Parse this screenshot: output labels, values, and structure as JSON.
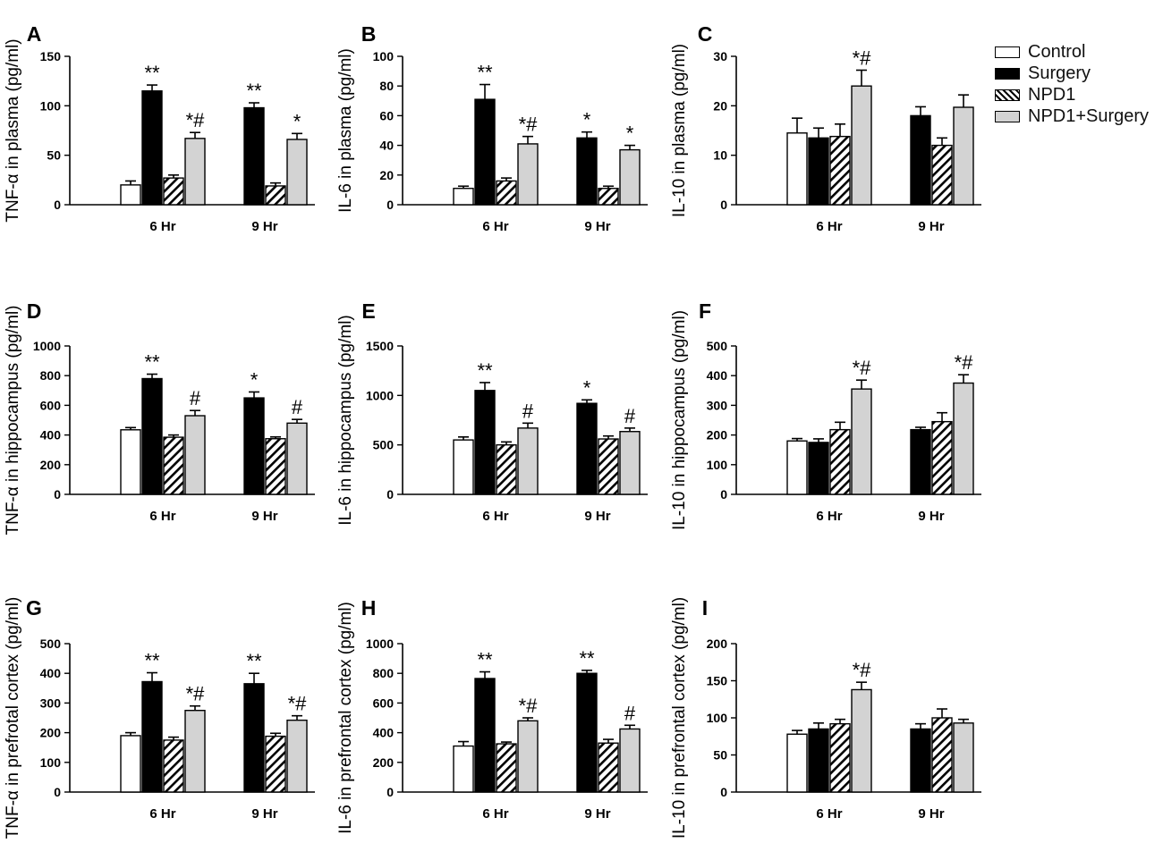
{
  "legend": [
    {
      "label": "Control",
      "fill": "#ffffff"
    },
    {
      "label": "Surgery",
      "fill": "#000000"
    },
    {
      "label": "NPD1",
      "fill": "hatch"
    },
    {
      "label": "NPD1+Surgery",
      "fill": "#d3d3d3"
    }
  ],
  "chart_data": [
    {
      "panel": "A",
      "type": "bar",
      "ylabel": "TNF-α in plasma (pg/ml)",
      "ylim": [
        0,
        150
      ],
      "ticks": [
        0,
        50,
        100,
        150
      ],
      "categories": [
        "6 Hr",
        "9 Hr"
      ],
      "series": [
        {
          "name": "Control",
          "values": [
            20,
            null
          ],
          "errors": [
            4,
            null
          ]
        },
        {
          "name": "Surgery",
          "values": [
            115,
            98
          ],
          "errors": [
            6,
            5
          ]
        },
        {
          "name": "NPD1",
          "values": [
            27,
            19
          ],
          "errors": [
            3,
            3
          ]
        },
        {
          "name": "NPD1+Surgery",
          "values": [
            67,
            66
          ],
          "errors": [
            6,
            6
          ]
        }
      ],
      "annotations": [
        [
          "",
          "**",
          "",
          "*#"
        ],
        [
          "",
          "**",
          "",
          "*"
        ]
      ]
    },
    {
      "panel": "B",
      "type": "bar",
      "ylabel": "IL-6 in plasma (pg/ml)",
      "ylim": [
        0,
        100
      ],
      "ticks": [
        0,
        20,
        40,
        60,
        80,
        100
      ],
      "categories": [
        "6 Hr",
        "9 Hr"
      ],
      "series": [
        {
          "name": "Control",
          "values": [
            11,
            null
          ],
          "errors": [
            1.5,
            null
          ]
        },
        {
          "name": "Surgery",
          "values": [
            71,
            45
          ],
          "errors": [
            10,
            4
          ]
        },
        {
          "name": "NPD1",
          "values": [
            16,
            11
          ],
          "errors": [
            2,
            1.5
          ]
        },
        {
          "name": "NPD1+Surgery",
          "values": [
            41,
            37
          ],
          "errors": [
            5,
            3
          ]
        }
      ],
      "annotations": [
        [
          "",
          "**",
          "",
          "*#"
        ],
        [
          "",
          "*",
          "",
          "*"
        ]
      ]
    },
    {
      "panel": "C",
      "type": "bar",
      "ylabel": "IL-10 in plasma (pg/ml)",
      "ylim": [
        0,
        30
      ],
      "ticks": [
        0,
        10,
        20,
        30
      ],
      "categories": [
        "6 Hr",
        "9 Hr"
      ],
      "series": [
        {
          "name": "Control",
          "values": [
            14.5,
            null
          ],
          "errors": [
            3,
            null
          ]
        },
        {
          "name": "Surgery",
          "values": [
            13.5,
            18
          ],
          "errors": [
            2,
            1.8
          ]
        },
        {
          "name": "NPD1",
          "values": [
            13.8,
            12
          ],
          "errors": [
            2.5,
            1.5
          ]
        },
        {
          "name": "NPD1+Surgery",
          "values": [
            24,
            19.7
          ],
          "errors": [
            3.2,
            2.5
          ]
        }
      ],
      "annotations": [
        [
          "",
          "",
          "",
          "*#"
        ],
        [
          "",
          "",
          "",
          ""
        ]
      ]
    },
    {
      "panel": "D",
      "type": "bar",
      "ylabel": "TNF-α in hippocampus (pg/ml)",
      "ylim": [
        0,
        1000
      ],
      "ticks": [
        0,
        200,
        400,
        600,
        800,
        1000
      ],
      "categories": [
        "6 Hr",
        "9 Hr"
      ],
      "series": [
        {
          "name": "Control",
          "values": [
            435,
            null
          ],
          "errors": [
            15,
            null
          ]
        },
        {
          "name": "Surgery",
          "values": [
            780,
            650
          ],
          "errors": [
            30,
            40
          ]
        },
        {
          "name": "NPD1",
          "values": [
            385,
            375
          ],
          "errors": [
            15,
            12
          ]
        },
        {
          "name": "NPD1+Surgery",
          "values": [
            530,
            480
          ],
          "errors": [
            35,
            25
          ]
        }
      ],
      "annotations": [
        [
          "",
          "**",
          "",
          "#"
        ],
        [
          "",
          "*",
          "",
          "#"
        ]
      ]
    },
    {
      "panel": "E",
      "type": "bar",
      "ylabel": "IL-6 in hippocampus (pg/ml)",
      "ylim": [
        0,
        1500
      ],
      "ticks": [
        0,
        500,
        1000,
        1500
      ],
      "categories": [
        "6 Hr",
        "9 Hr"
      ],
      "series": [
        {
          "name": "Control",
          "values": [
            550,
            null
          ],
          "errors": [
            30,
            null
          ]
        },
        {
          "name": "Surgery",
          "values": [
            1050,
            920
          ],
          "errors": [
            80,
            35
          ]
        },
        {
          "name": "NPD1",
          "values": [
            500,
            560
          ],
          "errors": [
            30,
            30
          ]
        },
        {
          "name": "NPD1+Surgery",
          "values": [
            670,
            635
          ],
          "errors": [
            50,
            35
          ]
        }
      ],
      "annotations": [
        [
          "",
          "**",
          "",
          "#"
        ],
        [
          "",
          "*",
          "",
          "#"
        ]
      ]
    },
    {
      "panel": "F",
      "type": "bar",
      "ylabel": "IL-10 in hippocampus (pg/ml)",
      "ylim": [
        0,
        500
      ],
      "ticks": [
        0,
        100,
        200,
        300,
        400,
        500
      ],
      "categories": [
        "6 Hr",
        "9 Hr"
      ],
      "series": [
        {
          "name": "Control",
          "values": [
            180,
            null
          ],
          "errors": [
            8,
            null
          ]
        },
        {
          "name": "Surgery",
          "values": [
            175,
            218
          ],
          "errors": [
            12,
            8
          ]
        },
        {
          "name": "NPD1",
          "values": [
            218,
            245
          ],
          "errors": [
            25,
            30
          ]
        },
        {
          "name": "NPD1+Surgery",
          "values": [
            355,
            375
          ],
          "errors": [
            30,
            28
          ]
        }
      ],
      "annotations": [
        [
          "",
          "",
          "",
          "*#"
        ],
        [
          "",
          "",
          "",
          "*#"
        ]
      ]
    },
    {
      "panel": "G",
      "type": "bar",
      "ylabel": "TNF-α in prefrotal cortex (pg/ml)",
      "ylim": [
        0,
        500
      ],
      "ticks": [
        0,
        100,
        200,
        300,
        400,
        500
      ],
      "categories": [
        "6 Hr",
        "9 Hr"
      ],
      "series": [
        {
          "name": "Control",
          "values": [
            190,
            null
          ],
          "errors": [
            10,
            null
          ]
        },
        {
          "name": "Surgery",
          "values": [
            372,
            365
          ],
          "errors": [
            30,
            35
          ]
        },
        {
          "name": "NPD1",
          "values": [
            175,
            188
          ],
          "errors": [
            10,
            10
          ]
        },
        {
          "name": "NPD1+Surgery",
          "values": [
            275,
            242
          ],
          "errors": [
            15,
            15
          ]
        }
      ],
      "annotations": [
        [
          "",
          "**",
          "",
          "*#"
        ],
        [
          "",
          "**",
          "",
          "*#"
        ]
      ]
    },
    {
      "panel": "H",
      "type": "bar",
      "ylabel": "IL-6 in prefrontal cortex (pg/ml)",
      "ylim": [
        0,
        1000
      ],
      "ticks": [
        0,
        200,
        400,
        600,
        800,
        1000
      ],
      "categories": [
        "6 Hr",
        "9 Hr"
      ],
      "series": [
        {
          "name": "Control",
          "values": [
            310,
            null
          ],
          "errors": [
            30,
            null
          ]
        },
        {
          "name": "Surgery",
          "values": [
            765,
            800
          ],
          "errors": [
            45,
            20
          ]
        },
        {
          "name": "NPD1",
          "values": [
            325,
            330
          ],
          "errors": [
            12,
            25
          ]
        },
        {
          "name": "NPD1+Surgery",
          "values": [
            480,
            425
          ],
          "errors": [
            20,
            25
          ]
        }
      ],
      "annotations": [
        [
          "",
          "**",
          "",
          "*#"
        ],
        [
          "",
          "**",
          "",
          "#"
        ]
      ]
    },
    {
      "panel": "I",
      "type": "bar",
      "ylabel": "IL-10 in prefrontal cortex (pg/ml)",
      "ylim": [
        0,
        200
      ],
      "ticks": [
        0,
        50,
        100,
        150,
        200
      ],
      "categories": [
        "6 Hr",
        "9 Hr"
      ],
      "series": [
        {
          "name": "Control",
          "values": [
            78,
            null
          ],
          "errors": [
            5,
            null
          ]
        },
        {
          "name": "Surgery",
          "values": [
            85,
            85
          ],
          "errors": [
            8,
            7
          ]
        },
        {
          "name": "NPD1",
          "values": [
            92,
            100
          ],
          "errors": [
            6,
            12
          ]
        },
        {
          "name": "NPD1+Surgery",
          "values": [
            138,
            93
          ],
          "errors": [
            10,
            5
          ]
        }
      ],
      "annotations": [
        [
          "",
          "",
          "",
          "*#"
        ],
        [
          "",
          "",
          "",
          ""
        ]
      ]
    }
  ]
}
